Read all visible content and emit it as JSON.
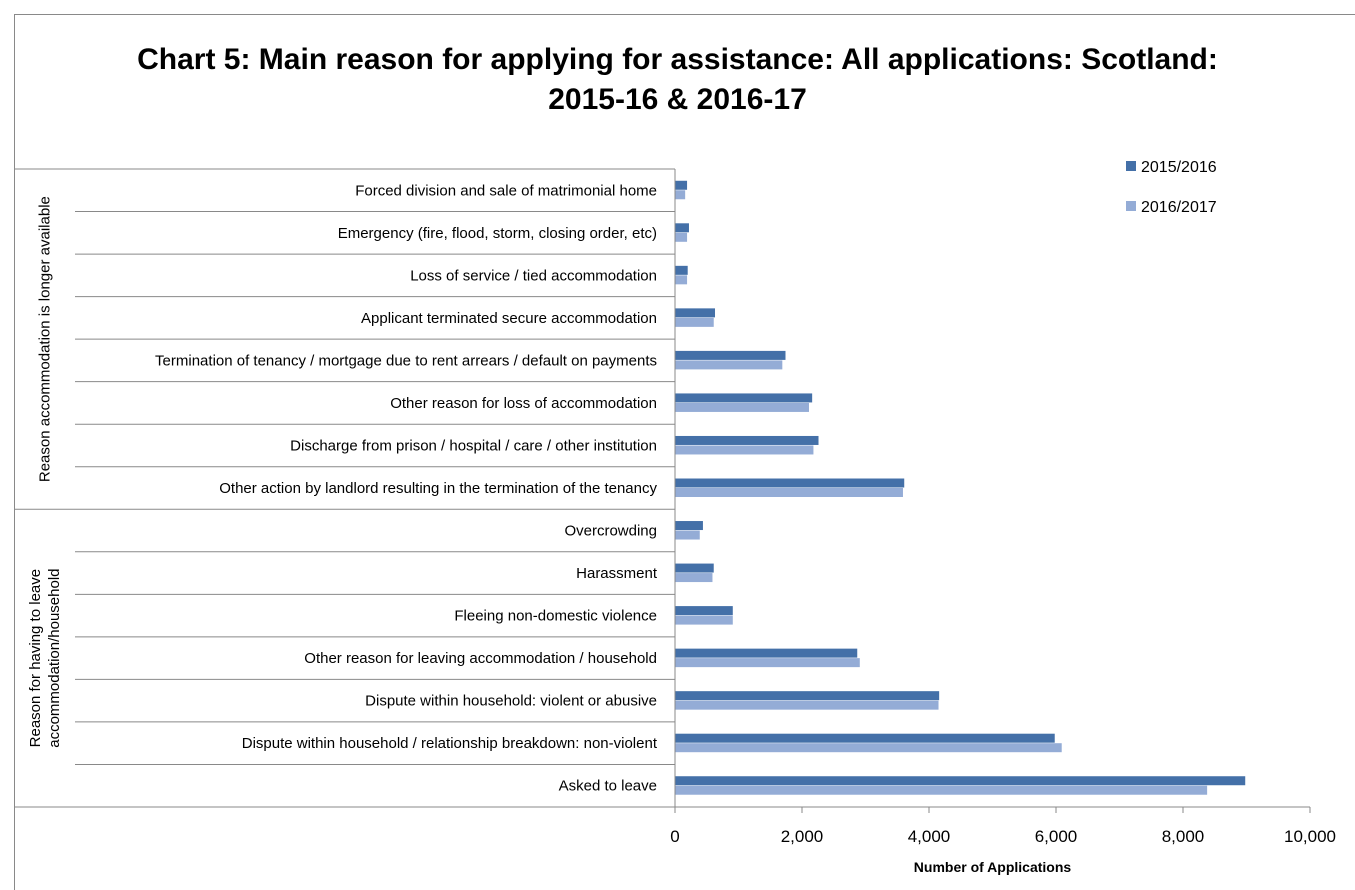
{
  "chart_data": {
    "type": "bar",
    "orientation": "horizontal",
    "title_line1": "Chart 5:  Main reason for applying for assistance: All applications: Scotland:",
    "title_line2": "2015-16 & 2016-17",
    "xlabel": "Number of Applications",
    "xlim": [
      0,
      10000
    ],
    "xticks": [
      "0",
      "2,000",
      "4,000",
      "6,000",
      "8,000",
      "10,000"
    ],
    "xtick_values": [
      0,
      2000,
      4000,
      6000,
      8000,
      10000
    ],
    "legend_position": "top-right",
    "groups": [
      {
        "label": "Reason accommodation is longer available",
        "label_lines": [
          "Reason accommodation is longer available"
        ],
        "start": 0,
        "count": 8
      },
      {
        "label": "Reason for having to leave accommodation/household",
        "label_lines": [
          "Reason for having to leave",
          "accommodation/household"
        ],
        "start": 8,
        "count": 7
      }
    ],
    "categories": [
      "Forced division and sale of matrimonial home",
      "Emergency (fire, flood, storm, closing order, etc)",
      "Loss of service / tied accommodation",
      "Applicant terminated secure accommodation",
      "Termination of tenancy / mortgage due to rent arrears / default on payments",
      "Other reason for loss of accommodation",
      "Discharge from prison / hospital / care / other institution",
      "Other action by landlord resulting in the termination of the tenancy",
      "Overcrowding",
      "Harassment",
      "Fleeing non-domestic violence",
      "Other reason for leaving accommodation / household",
      "Dispute within household: violent or abusive",
      "Dispute within household / relationship breakdown: non-violent",
      "Asked to leave"
    ],
    "series": [
      {
        "name": "2015/2016",
        "color": "#4470a8",
        "values": [
          190,
          220,
          200,
          630,
          1740,
          2160,
          2260,
          3610,
          440,
          610,
          910,
          2870,
          4160,
          5980,
          8980
        ]
      },
      {
        "name": "2016/2017",
        "color": "#94acd6",
        "values": [
          160,
          190,
          190,
          610,
          1690,
          2110,
          2180,
          3590,
          390,
          590,
          910,
          2910,
          4150,
          6090,
          8380
        ]
      }
    ]
  }
}
